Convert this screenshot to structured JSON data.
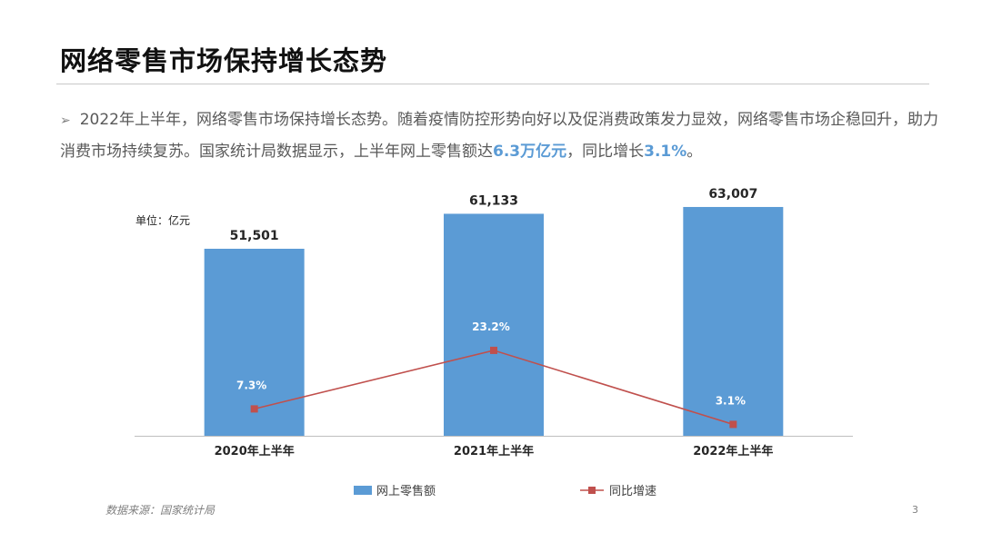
{
  "slide": {
    "title": "网络零售市场保持增长态势",
    "bullet": {
      "arrow": "➢",
      "text_1": "2022年上半年，网络零售市场保持增长态势。随着疫情防控形势向好以及促消费政策发力显效，网络零售市场企稳回升，助力消费市场持续复苏。国家统计局数据显示，上半年网上零售额达",
      "highlight_1": "6.3万亿元",
      "text_2": "，同比增长",
      "highlight_2": "3.1%",
      "text_3": "。"
    },
    "source": "数据来源：国家统计局",
    "page_number": "3"
  },
  "colors": {
    "bar": "#5b9bd5",
    "line": "#c0504d",
    "highlight": "#5b9bd5"
  },
  "chart_data": {
    "type": "bar",
    "unit_label": "单位：亿元",
    "categories": [
      "2020年上半年",
      "2021年上半年",
      "2022年上半年"
    ],
    "series": [
      {
        "name": "网上零售额",
        "type": "bar",
        "axis": "left",
        "values": [
          51501,
          61133,
          63007
        ],
        "labels": [
          "51,501",
          "61,133",
          "63,007"
        ]
      },
      {
        "name": "同比增速",
        "type": "line",
        "axis": "right",
        "values": [
          7.3,
          23.2,
          3.1
        ],
        "labels": [
          "7.3%",
          "23.2%",
          "3.1%"
        ]
      }
    ],
    "ylim": [
      0,
      70000
    ],
    "y2lim": [
      0,
      36
    ],
    "grid": false,
    "legend_position": "bottom"
  }
}
